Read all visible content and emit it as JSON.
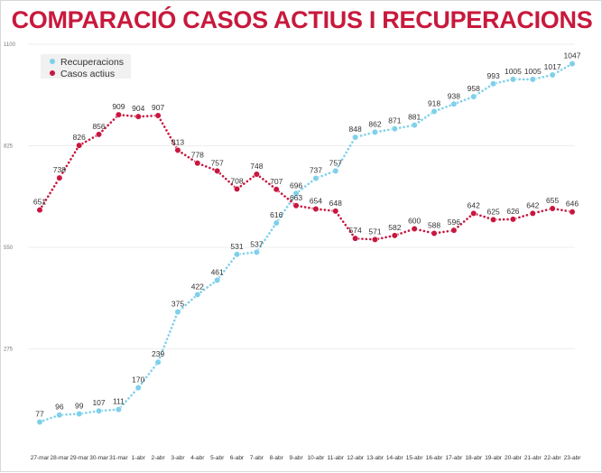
{
  "title": "COMPARACIÓ CASOS ACTIUS I RECUPERACIONS",
  "colors": {
    "title": "#c8193c",
    "recuperacions": "#7fd0ea",
    "casos_actius": "#c8173f",
    "grid": "#eeeeee"
  },
  "chart_data": {
    "type": "line",
    "title": "COMPARACIÓ CASOS ACTIUS I RECUPERACIONS",
    "xlabel": "",
    "ylabel": "",
    "categories": [
      "27-mar",
      "28-mar",
      "29-mar",
      "30-mar",
      "31-mar",
      "1-abr",
      "2-abr",
      "3-abr",
      "4-abr",
      "5-abr",
      "6-abr",
      "7-abr",
      "8-abr",
      "9-abr",
      "10-abr",
      "11-abr",
      "12-abr",
      "13-abr",
      "14-abr",
      "15-abr",
      "16-abr",
      "17-abr",
      "18-abr",
      "19-abr",
      "20-abr",
      "21-abr",
      "22-abr",
      "23-abr"
    ],
    "yticks": [
      "1100",
      "825",
      "550",
      "275"
    ],
    "ylim": [
      0,
      1100
    ],
    "grid": true,
    "legend_position": "top-left",
    "series": [
      {
        "name": "Recuperacions",
        "color": "#7fd0ea",
        "labels": [
          "77",
          "96",
          "99",
          "107",
          "111",
          "170",
          "239",
          "375",
          "422",
          "461",
          "531",
          "537",
          "616",
          "696",
          "737",
          "757",
          "848",
          "862",
          "871",
          "881",
          "918",
          "938",
          "958",
          "993",
          "1005",
          "1005",
          "1017",
          "1047"
        ],
        "values": [
          77,
          96,
          99,
          107,
          111,
          170,
          239,
          375,
          422,
          461,
          531,
          537,
          616,
          696,
          737,
          757,
          848,
          862,
          871,
          881,
          918,
          938,
          958,
          993,
          1005,
          1005,
          1017,
          1047
        ]
      },
      {
        "name": "Casos actius",
        "color": "#c8173f",
        "labels": [
          "651",
          "738",
          "826",
          "856",
          "909",
          "904",
          "907",
          "813",
          "778",
          "757",
          "708",
          "748",
          "707",
          "663",
          "654",
          "648",
          "574",
          "571",
          "582",
          "600",
          "588",
          "596",
          "642",
          "625",
          "626",
          "642",
          "655",
          "646"
        ],
        "values": [
          651,
          738,
          826,
          856,
          909,
          904,
          907,
          813,
          778,
          757,
          708,
          748,
          707,
          663,
          654,
          648,
          574,
          571,
          582,
          600,
          588,
          596,
          642,
          625,
          626,
          642,
          655,
          646
        ]
      }
    ]
  }
}
